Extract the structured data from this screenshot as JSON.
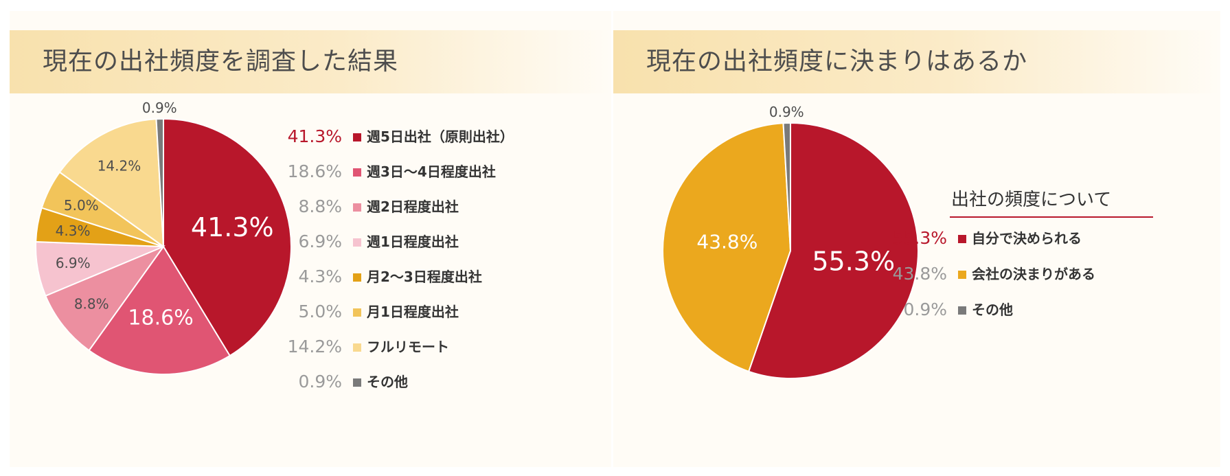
{
  "left_panel": {
    "title": "現在の出社頻度を調査した結果"
  },
  "right_panel": {
    "title": "現在の出社頻度に決まりはあるか",
    "legend_title": "出社の頻度について"
  },
  "chart_data": [
    {
      "type": "pie",
      "title": "現在の出社頻度を調査した結果",
      "unit": "%",
      "slices": [
        {
          "label": "週5日出社（原則出社）",
          "value": 41.3,
          "display": "41.3%",
          "color": "#b8172b"
        },
        {
          "label": "週3日〜4日程度出社",
          "value": 18.6,
          "display": "18.6%",
          "color": "#e05573"
        },
        {
          "label": "週2日程度出社",
          "value": 8.8,
          "display": "8.8%",
          "color": "#ec8fa0"
        },
        {
          "label": "週1日程度出社",
          "value": 6.9,
          "display": "6.9%",
          "color": "#f6c3cf"
        },
        {
          "label": "月2〜3日程度出社",
          "value": 4.3,
          "display": "4.3%",
          "color": "#e3a117"
        },
        {
          "label": "月1日程度出社",
          "value": 5.0,
          "display": "5.0%",
          "color": "#f2c45a"
        },
        {
          "label": "フルリモート",
          "value": 14.2,
          "display": "14.2%",
          "color": "#f9d98f"
        },
        {
          "label": "その他",
          "value": 0.9,
          "display": "0.9%",
          "color": "#7a7a7a"
        }
      ],
      "highlight_color": "#b8172b",
      "legend_position": "right"
    },
    {
      "type": "pie",
      "title": "現在の出社頻度に決まりはあるか",
      "unit": "%",
      "slices": [
        {
          "label": "自分で決められる",
          "value": 55.3,
          "display": "55.3%",
          "color": "#b8172b"
        },
        {
          "label": "会社の決まりがある",
          "value": 43.8,
          "display": "43.8%",
          "color": "#eba81e"
        },
        {
          "label": "その他",
          "value": 0.9,
          "display": "0.9%",
          "color": "#7a7a7a"
        }
      ],
      "highlight_color": "#b8172b",
      "legend_position": "right"
    }
  ]
}
